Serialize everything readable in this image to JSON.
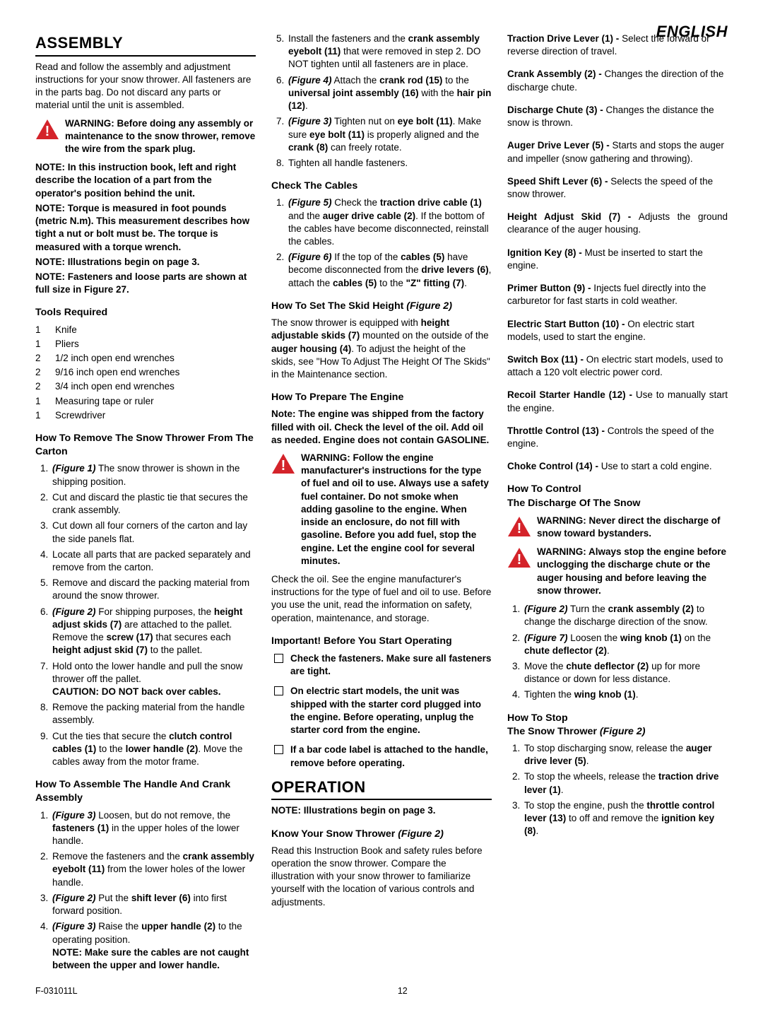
{
  "lang_label": "ENGLISH",
  "assembly_h": "ASSEMBLY",
  "operation_h": "OPERATION",
  "intro": "Read and follow the assembly and adjustment instructions for your snow thrower. All fasteners are in the parts bag. Do not discard any parts or material until the unit is assembled.",
  "warn1": "WARNING: Before doing any assembly or maintenance to the snow thrower, remove the wire from the spark plug.",
  "note1": "NOTE: In this instruction book, left and right describe the location of a part from the operator's position behind the unit.",
  "note2": "NOTE: Torque is measured in foot pounds (metric N.m). This measurement describes how tight a nut or bolt must be. The torque is measured with a torque wrench.",
  "note3": "NOTE: Illustrations begin on page 3.",
  "note4": "NOTE: Fasteners and loose parts are shown at full size in Figure  27.",
  "tools_h": "Tools Required",
  "tools": [
    {
      "q": "1",
      "n": "Knife"
    },
    {
      "q": "1",
      "n": "Pliers"
    },
    {
      "q": "2",
      "n": "1/2 inch open end wrenches"
    },
    {
      "q": "2",
      "n": "9/16 inch open end wrenches"
    },
    {
      "q": "2",
      "n": "3/4 inch open end wrenches"
    },
    {
      "q": "1",
      "n": "Measuring tape or ruler"
    },
    {
      "q": "1",
      "n": "Screwdriver"
    }
  ],
  "remove_h": "How To Remove The Snow Thrower From The Carton",
  "handle_h": "How To Assemble The Handle And Crank Assembly",
  "cables_h": "Check The Cables",
  "skid_h": "How To Set The Skid Height",
  "skid_fig": " (Figure 2)",
  "skid_p": "The snow thrower is equipped with <b>height adjustable skids (7)</b> mounted on the outside of the <b>auger housing (4)</b>. To adjust the height of the skids, see \"How To Adjust The Height Of The Skids\" in the Maintenance section.",
  "engine_h": "How To Prepare The Engine",
  "engine_note": "Note: The engine was shipped from the factory filled with oil.  Check the level of the oil. Add oil as needed. Engine does not contain GASOLINE.",
  "engine_warn": "WARNING: Follow the  engine manufacturer's instructions for the type of fuel and oil to use. Always use a safety fuel container. Do not smoke when adding gasoline to the engine. When inside an enclosure, do not fill with gasoline. Before you add fuel, stop the engine. Let the engine cool for several minutes.",
  "engine_p": "Check the oil. See the engine manufacturer's instructions for the type of fuel and oil to use. Before you use the unit, read the information on safety, operation, maintenance, and storage.",
  "important_h": "Important! Before You Start Operating",
  "check_items": [
    "Check the fasteners. Make sure all fasteners are tight.",
    "On electric start models, the unit was shipped with the starter cord plugged into the engine. Before operating, unplug the starter cord from the engine.",
    "If a bar code label is attached to the handle, remove before operating."
  ],
  "op_note": "NOTE: Illustrations begin on page 3.",
  "know_h": "Know Your Snow Thrower",
  "know_fig": " (Figure 2)",
  "know_p": "Read this Instruction Book and safety rules before operation the snow thrower. Compare the illustration with your snow thrower to familiarize yourself with the location of various controls and adjustments.",
  "controls": [
    {
      "lbl": "Traction Drive Lever (1) - ",
      "txt": "Select the forward or reverse direction of travel."
    },
    {
      "lbl": "Crank Assembly (2) -  ",
      "txt": "Changes the direction of the discharge chute."
    },
    {
      "lbl": "Discharge Chute (3) - ",
      "txt": "Changes the distance the snow is thrown."
    },
    {
      "lbl": "Auger Drive Lever (5) - ",
      "txt": "Starts and stops the auger and impeller (snow gathering and throwing)."
    },
    {
      "lbl": "Speed Shift Lever (6) - ",
      "txt": "Selects the speed of the snow thrower."
    },
    {
      "lbl": "Height Adjust Skid (7) - ",
      "txt": "Adjusts the ground clearance of the auger housing."
    },
    {
      "lbl": "Ignition Key (8) - ",
      "txt": "Must be inserted to start the engine."
    },
    {
      "lbl": "Primer Button (9) - ",
      "txt": "Injects fuel directly into the carburetor for fast starts in cold weather."
    },
    {
      "lbl": "Electric Start Button (10) - ",
      "txt": "On electric start models, used to start the engine."
    },
    {
      "lbl": "Switch Box (11) - ",
      "txt": "On electric start models, used to attach a 120 volt electric power cord."
    },
    {
      "lbl": "Recoil Starter Handle (12) - ",
      "txt": "Use to manually start the engine."
    },
    {
      "lbl": "Throttle Control (13) - ",
      "txt": "Controls the speed of the engine."
    },
    {
      "lbl": "Choke Control (14) - ",
      "txt": "Use to start a cold engine."
    }
  ],
  "discharge_h": "How To Control\nThe Discharge Of The Snow",
  "discharge_warn1": "WARNING: Never direct the discharge of snow toward bystanders.",
  "discharge_warn2": "WARNING: Always stop the engine before unclogging the discharge chute or the auger housing and before leaving the snow thrower.",
  "stop_h": "How To Stop\nThe Snow Thrower ",
  "stop_fig": " (Figure 2)",
  "footer_l": "F-031011L",
  "footer_c": "12"
}
